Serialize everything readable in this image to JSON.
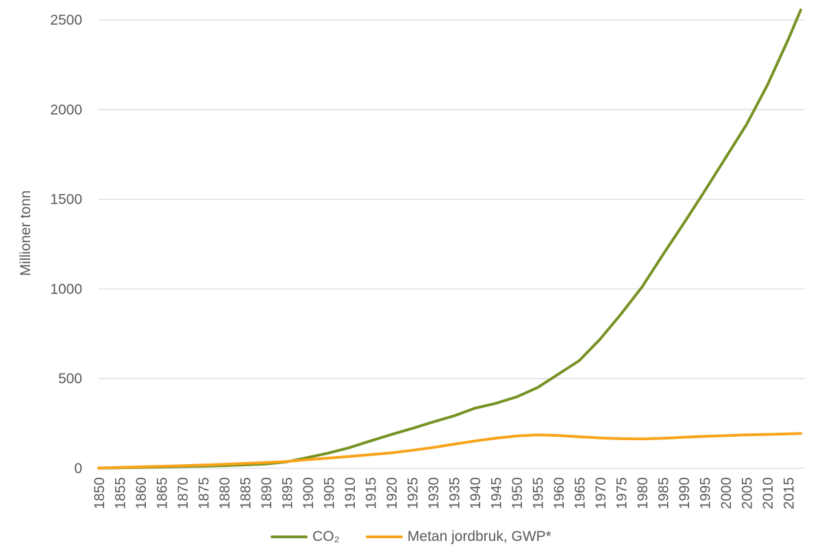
{
  "chart_data": {
    "type": "line",
    "title": "",
    "xlabel": "",
    "ylabel": "Millioner tonn",
    "x": [
      1850,
      1855,
      1860,
      1865,
      1870,
      1875,
      1880,
      1885,
      1890,
      1895,
      1900,
      1905,
      1910,
      1915,
      1920,
      1925,
      1930,
      1935,
      1940,
      1945,
      1950,
      1955,
      1960,
      1965,
      1970,
      1975,
      1980,
      1985,
      1990,
      1995,
      2000,
      2005,
      2010,
      2015,
      2018
    ],
    "series": [
      {
        "name": "CO₂",
        "color": "#769223",
        "values": [
          1,
          3,
          5,
          7,
          10,
          12,
          15,
          19,
          24,
          36,
          60,
          85,
          115,
          152,
          188,
          222,
          258,
          292,
          335,
          362,
          398,
          450,
          525,
          600,
          720,
          860,
          1010,
          1190,
          1365,
          1545,
          1730,
          1915,
          2135,
          2390,
          2555
        ]
      },
      {
        "name": "Metan jordbruk, GWP*",
        "color": "#F8A31A",
        "values": [
          2,
          5,
          8,
          11,
          14,
          18,
          22,
          27,
          32,
          38,
          48,
          57,
          66,
          76,
          86,
          100,
          116,
          134,
          152,
          168,
          180,
          186,
          183,
          176,
          169,
          165,
          164,
          167,
          173,
          178,
          182,
          186,
          189,
          192,
          194
        ]
      }
    ],
    "xticks": [
      1850,
      1855,
      1860,
      1865,
      1870,
      1875,
      1880,
      1885,
      1890,
      1895,
      1900,
      1905,
      1910,
      1915,
      1920,
      1925,
      1930,
      1935,
      1940,
      1945,
      1950,
      1955,
      1960,
      1965,
      1970,
      1975,
      1980,
      1985,
      1990,
      1995,
      2000,
      2005,
      2010,
      2015
    ],
    "yticks": [
      0,
      500,
      1000,
      1500,
      2000,
      2500
    ],
    "xlim": [
      1850,
      2019
    ],
    "ylim": [
      0,
      2600
    ],
    "grid": "horizontal",
    "gridline_color": "#D9D9D9",
    "text_color": "#595959",
    "legend_position": "bottom-center"
  }
}
